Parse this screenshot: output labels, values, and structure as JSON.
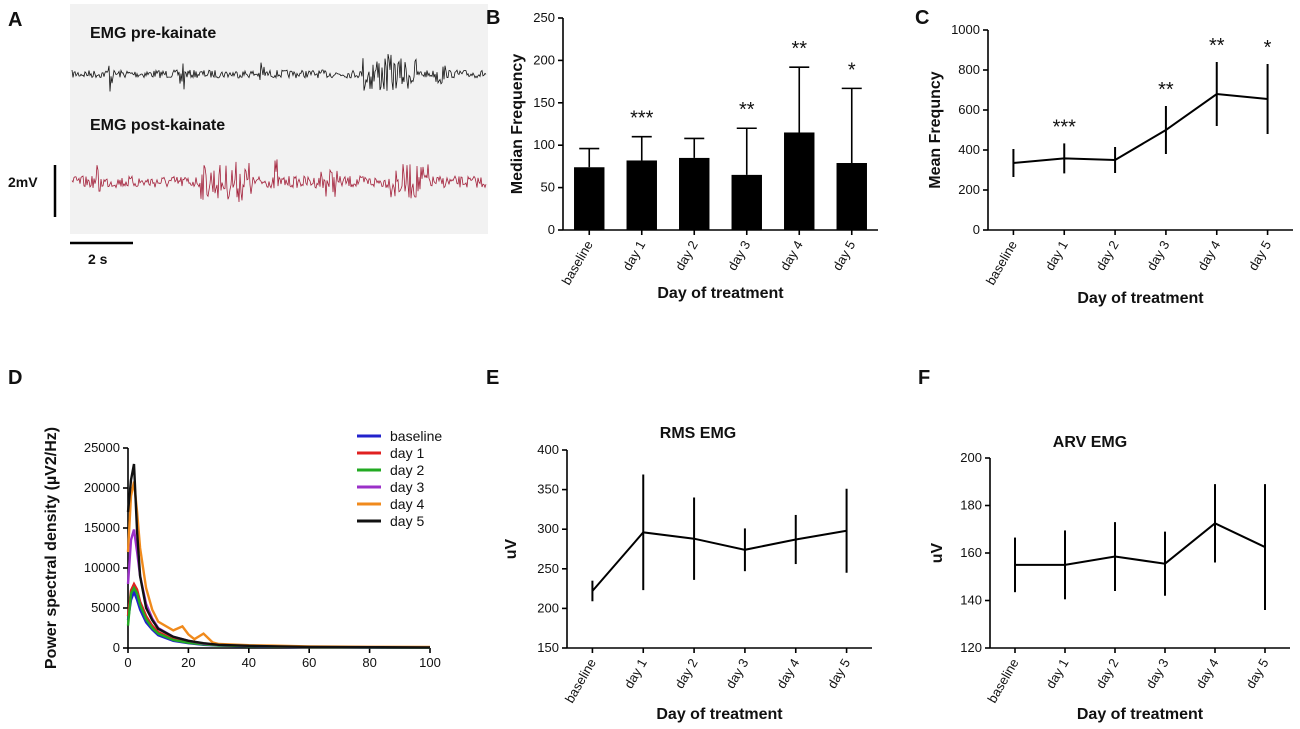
{
  "panel_labels": [
    "A",
    "B",
    "C",
    "D",
    "E",
    "F"
  ],
  "emg_panel": {
    "pre_label": "EMG pre-kainate",
    "post_label": "EMG post-kainate",
    "scale_v": "2mV",
    "scale_t": "2 s",
    "pre_color": "#111111",
    "post_color": "#a3203a"
  },
  "chart_data": [
    {
      "type": "bar",
      "panel": "B",
      "categories": [
        "baseline",
        "day 1",
        "day 2",
        "day 3",
        "day 4",
        "day 5"
      ],
      "values": [
        74,
        82,
        85,
        65,
        115,
        79
      ],
      "errors": [
        22,
        28,
        23,
        55,
        77,
        88
      ],
      "significance": [
        "",
        "***",
        "",
        "**",
        "**",
        "*"
      ],
      "ylabel": "Median Frequency",
      "xlabel": "Day of treatment",
      "ylim": [
        0,
        250
      ],
      "yticks": [
        0,
        50,
        100,
        150,
        200,
        250
      ]
    },
    {
      "type": "line",
      "panel": "C",
      "categories": [
        "baseline",
        "day 1",
        "day 2",
        "day 3",
        "day 4",
        "day 5"
      ],
      "values": [
        335,
        358,
        350,
        500,
        680,
        655
      ],
      "errors": [
        70,
        75,
        65,
        120,
        160,
        175
      ],
      "significance": [
        "",
        "***",
        "",
        "**",
        "**",
        "*"
      ],
      "ylabel": "Mean Frequncy",
      "xlabel": "Day of treatment",
      "ylim": [
        0,
        1000
      ],
      "yticks": [
        0,
        200,
        400,
        600,
        800,
        1000
      ]
    },
    {
      "type": "line",
      "panel": "D",
      "ylabel": "Power spectral density (µV2/Hz)",
      "xlim": [
        0,
        100
      ],
      "ylim": [
        0,
        25000
      ],
      "xticks": [
        0,
        20,
        40,
        60,
        80,
        100
      ],
      "yticks": [
        0,
        5000,
        10000,
        15000,
        20000,
        25000
      ],
      "series": [
        {
          "name": "baseline",
          "color": "#2222cc",
          "x": [
            0,
            1,
            2,
            3,
            4,
            6,
            8,
            10,
            15,
            20,
            25,
            30,
            40,
            50,
            60,
            80,
            100
          ],
          "y": [
            3500,
            6000,
            7000,
            6000,
            4800,
            3200,
            2300,
            1600,
            900,
            600,
            400,
            300,
            200,
            150,
            100,
            80,
            60
          ]
        },
        {
          "name": "day 1",
          "color": "#e02020",
          "x": [
            0,
            1,
            2,
            3,
            4,
            6,
            8,
            10,
            15,
            20,
            25,
            30,
            40,
            50,
            60,
            80,
            100
          ],
          "y": [
            4000,
            7200,
            8000,
            7300,
            5800,
            4000,
            2800,
            2000,
            1100,
            750,
            500,
            350,
            250,
            180,
            120,
            90,
            70
          ]
        },
        {
          "name": "day 2",
          "color": "#22aa22",
          "x": [
            0,
            1,
            2,
            3,
            4,
            6,
            8,
            10,
            15,
            20,
            25,
            30,
            40,
            50,
            60,
            80,
            100
          ],
          "y": [
            2800,
            6800,
            7500,
            6800,
            5400,
            3600,
            2500,
            1800,
            1000,
            650,
            450,
            320,
            220,
            160,
            110,
            80,
            60
          ]
        },
        {
          "name": "day 3",
          "color": "#9b30c8",
          "x": [
            0,
            1,
            2,
            3,
            4,
            6,
            8,
            10,
            15,
            20,
            25,
            30,
            40,
            50,
            60,
            80,
            100
          ],
          "y": [
            8000,
            13500,
            14800,
            12000,
            9000,
            5500,
            3700,
            2500,
            1400,
            900,
            550,
            400,
            280,
            200,
            150,
            110,
            90
          ]
        },
        {
          "name": "day 4",
          "color": "#f08a1c",
          "x": [
            0,
            1,
            2,
            3,
            4,
            6,
            8,
            10,
            15,
            18,
            20,
            22,
            25,
            28,
            30,
            40,
            48,
            60,
            80,
            100
          ],
          "y": [
            12000,
            19000,
            20800,
            17000,
            12500,
            7500,
            4800,
            3300,
            2200,
            2700,
            1700,
            1100,
            1800,
            700,
            500,
            350,
            300,
            200,
            150,
            120
          ]
        },
        {
          "name": "day 5",
          "color": "#111111",
          "x": [
            0,
            1,
            2,
            3,
            4,
            6,
            8,
            10,
            15,
            20,
            25,
            30,
            40,
            50,
            60,
            80,
            100
          ],
          "y": [
            17000,
            21000,
            23000,
            14500,
            9000,
            5000,
            3500,
            2400,
            1400,
            900,
            600,
            400,
            280,
            200,
            140,
            100,
            80
          ]
        }
      ]
    },
    {
      "type": "line",
      "panel": "E",
      "title": "RMS EMG",
      "categories": [
        "baseline",
        "day 1",
        "day 2",
        "day 3",
        "day 4",
        "day 5"
      ],
      "values": [
        222,
        296,
        288,
        274,
        287,
        298
      ],
      "errors": [
        13,
        73,
        52,
        27,
        31,
        53
      ],
      "ylabel": "uV",
      "xlabel": "Day of treatment",
      "ylim": [
        150,
        400
      ],
      "yticks": [
        150,
        200,
        250,
        300,
        350,
        400
      ]
    },
    {
      "type": "line",
      "panel": "F",
      "title": "ARV EMG",
      "categories": [
        "baseline",
        "day 1",
        "day 2",
        "day 3",
        "day 4",
        "day 5"
      ],
      "values": [
        155,
        155,
        158.5,
        155.5,
        172.5,
        162.5
      ],
      "errors": [
        11.5,
        14.5,
        14.5,
        13.5,
        16.5,
        26.5
      ],
      "ylabel": "uV",
      "xlabel": "Day of treatment",
      "ylim": [
        120,
        200
      ],
      "yticks": [
        120,
        140,
        160,
        180,
        200
      ]
    }
  ]
}
